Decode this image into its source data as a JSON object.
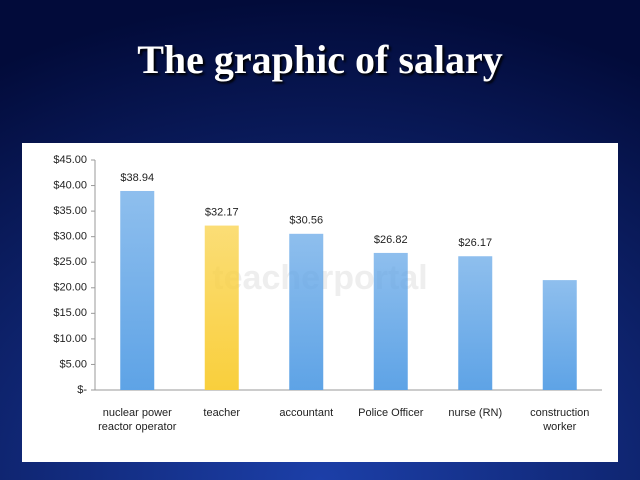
{
  "chart_data": {
    "type": "bar",
    "title": "The graphic of salary",
    "watermark": "teacherportal",
    "categories": [
      "nuclear power reactor operator",
      "teacher",
      "accountant",
      "Police Officer",
      "nurse (RN)",
      "construction worker"
    ],
    "values": [
      38.94,
      32.17,
      30.56,
      26.82,
      26.17,
      21.5
    ],
    "value_labels": [
      "$38.94",
      "$32.17",
      "$30.56",
      "$26.82",
      "$26.17",
      null
    ],
    "colors": [
      "#5ea3e6",
      "#f9cf3c",
      "#5ea3e6",
      "#5ea3e6",
      "#5ea3e6",
      "#5ea3e6"
    ],
    "ylim": [
      0,
      45
    ],
    "yticks": [
      {
        "value": 0,
        "label": "$-"
      },
      {
        "value": 5,
        "label": "$5.00"
      },
      {
        "value": 10,
        "label": "$10.00"
      },
      {
        "value": 15,
        "label": "$15.00"
      },
      {
        "value": 20,
        "label": "$20.00"
      },
      {
        "value": 25,
        "label": "$25.00"
      },
      {
        "value": 30,
        "label": "$30.00"
      },
      {
        "value": 35,
        "label": "$35.00"
      },
      {
        "value": 40,
        "label": "$40.00"
      },
      {
        "value": 45,
        "label": "$45.00"
      }
    ],
    "grid": false
  }
}
